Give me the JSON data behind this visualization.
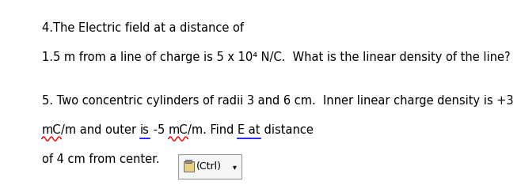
{
  "background_color": "#ffffff",
  "line1": "4.The Electric field at a distance of",
  "line2": "1.5 m from a line of charge is 5 x 10⁴ N/C.  What is the linear density of the line?",
  "line3": "5. Two concentric cylinders of radii 3 and 6 cm.  Inner linear charge density is +3",
  "line5": "of 4 cm from center.",
  "ctrl_label": "(Ctrl)",
  "font_size": 10.5,
  "text_color": "#000000",
  "ctrl_box_color": "#f5f5f5",
  "ctrl_border_color": "#999999",
  "line4_segments": [
    {
      "text": "mC",
      "underline": "red"
    },
    {
      "text": "/m and outer ",
      "underline": null
    },
    {
      "text": "is",
      "underline": "blue"
    },
    {
      "text": " -5 ",
      "underline": null
    },
    {
      "text": "mC",
      "underline": "red"
    },
    {
      "text": "/m. Find ",
      "underline": null
    },
    {
      "text": "E at",
      "underline": "blue"
    },
    {
      "text": " distance",
      "underline": null
    }
  ]
}
